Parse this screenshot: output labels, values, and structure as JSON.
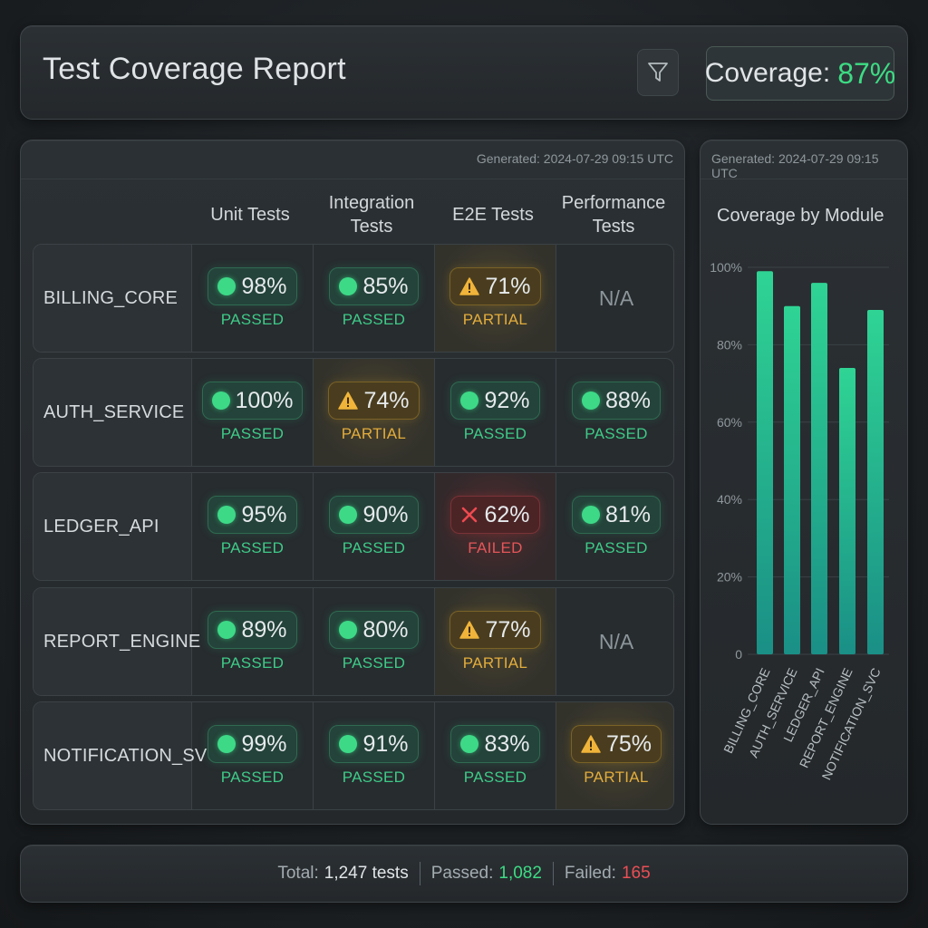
{
  "header": {
    "title": "Test Coverage Report",
    "coverage_label": "Coverage:",
    "coverage_value": "87%",
    "filter_icon": "filter-funnel-icon"
  },
  "table": {
    "generated": "Generated: 2024-07-29 09:15 UTC",
    "columns": [
      "Unit Tests",
      "Integration Tests",
      "E2E Tests",
      "Performance Tests"
    ],
    "rows": [
      {
        "module": "BILLING_CORE",
        "cells": [
          {
            "value": "98%",
            "status": "PASSED",
            "kind": "passed"
          },
          {
            "value": "85%",
            "status": "PASSED",
            "kind": "passed"
          },
          {
            "value": "71%",
            "status": "PARTIAL",
            "kind": "partial"
          },
          {
            "value": "N/A",
            "status": "",
            "kind": "na"
          }
        ]
      },
      {
        "module": "AUTH_SERVICE",
        "cells": [
          {
            "value": "100%",
            "status": "PASSED",
            "kind": "passed"
          },
          {
            "value": "74%",
            "status": "PARTIAL",
            "kind": "partial"
          },
          {
            "value": "92%",
            "status": "PASSED",
            "kind": "passed"
          },
          {
            "value": "88%",
            "status": "PASSED",
            "kind": "passed"
          }
        ]
      },
      {
        "module": "LEDGER_API",
        "cells": [
          {
            "value": "95%",
            "status": "PASSED",
            "kind": "passed"
          },
          {
            "value": "90%",
            "status": "PASSED",
            "kind": "passed"
          },
          {
            "value": "62%",
            "status": "FAILED",
            "kind": "failed"
          },
          {
            "value": "81%",
            "status": "PASSED",
            "kind": "passed"
          }
        ]
      },
      {
        "module": "REPORT_ENGINE",
        "cells": [
          {
            "value": "89%",
            "status": "PASSED",
            "kind": "passed"
          },
          {
            "value": "80%",
            "status": "PASSED",
            "kind": "passed"
          },
          {
            "value": "77%",
            "status": "PARTIAL",
            "kind": "partial"
          },
          {
            "value": "N/A",
            "status": "",
            "kind": "na"
          }
        ]
      },
      {
        "module": "NOTIFICATION_SVC",
        "cells": [
          {
            "value": "99%",
            "status": "PASSED",
            "kind": "passed"
          },
          {
            "value": "91%",
            "status": "PASSED",
            "kind": "passed"
          },
          {
            "value": "83%",
            "status": "PASSED",
            "kind": "passed"
          },
          {
            "value": "75%",
            "status": "PARTIAL",
            "kind": "partial"
          }
        ]
      }
    ]
  },
  "chart": {
    "generated": "Generated: 2024-07-29 09:15 UTC",
    "title": "Coverage by Module"
  },
  "chart_data": {
    "type": "bar",
    "title": "Coverage by Module",
    "categories": [
      "BILLING_CORE",
      "AUTH_SERVICE",
      "LEDGER_API",
      "REPORT_ENGINE",
      "NOTIFICATION_SVC"
    ],
    "values": [
      99,
      90,
      96,
      74,
      89
    ],
    "ylim": [
      0,
      100
    ],
    "yticks": [
      "0",
      "20%",
      "40%",
      "60%",
      "80%",
      "100%"
    ],
    "grid": true,
    "bar_color": "#27c48f"
  },
  "footer": {
    "total_label": "Total:",
    "total_value": "1,247 tests",
    "passed_label": "Passed:",
    "passed_value": "1,082",
    "failed_label": "Failed:",
    "failed_value": "165"
  },
  "colors": {
    "passed": "#3ddc84",
    "partial": "#e3ad3c",
    "failed": "#e45659"
  }
}
